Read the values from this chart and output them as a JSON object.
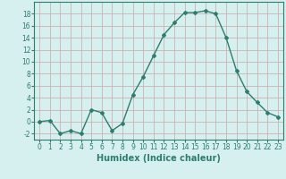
{
  "x": [
    0,
    1,
    2,
    3,
    4,
    5,
    6,
    7,
    8,
    9,
    10,
    11,
    12,
    13,
    14,
    15,
    16,
    17,
    18,
    19,
    20,
    21,
    22,
    23
  ],
  "y": [
    0,
    0.2,
    -2,
    -1.5,
    -2,
    2,
    1.5,
    -1.5,
    -0.3,
    4.5,
    7.5,
    11,
    14.5,
    16.5,
    18.2,
    18.2,
    18.5,
    18,
    14,
    8.5,
    5,
    3.2,
    1.5,
    0.8
  ],
  "line_color": "#2e7d6e",
  "marker": "D",
  "marker_size": 2.0,
  "bg_color": "#d6efef",
  "grid_color": "#c8dede",
  "xlabel": "Humidex (Indice chaleur)",
  "ylim": [
    -3,
    20
  ],
  "yticks": [
    -2,
    0,
    2,
    4,
    6,
    8,
    10,
    12,
    14,
    16,
    18
  ],
  "xticks": [
    0,
    1,
    2,
    3,
    4,
    5,
    6,
    7,
    8,
    9,
    10,
    11,
    12,
    13,
    14,
    15,
    16,
    17,
    18,
    19,
    20,
    21,
    22,
    23
  ],
  "tick_fontsize": 5.5,
  "xlabel_fontsize": 7.0,
  "line_width": 1.0
}
